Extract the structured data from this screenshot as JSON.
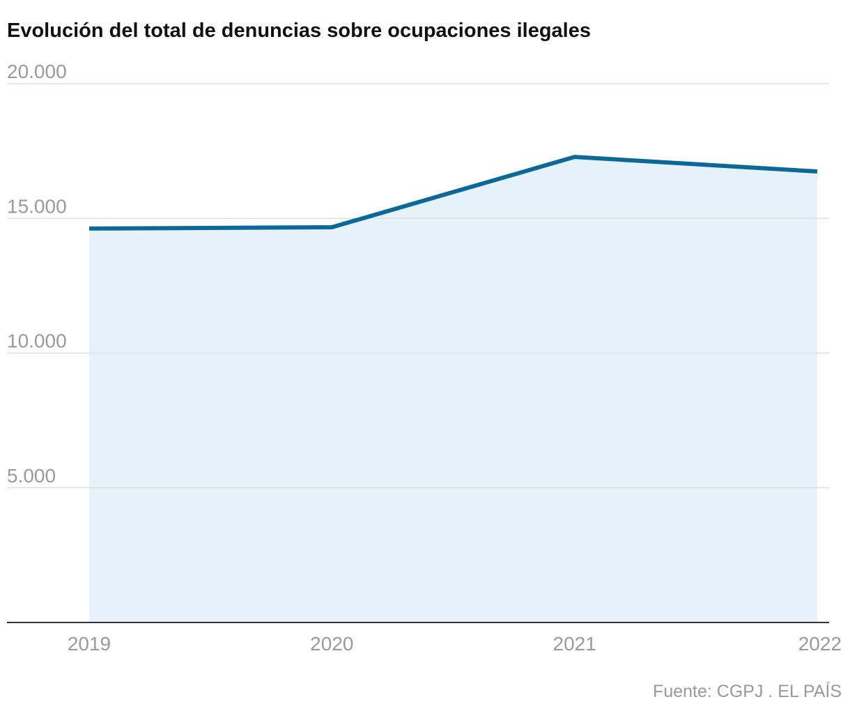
{
  "chart_data": {
    "type": "line",
    "title": "Evolución del total de denuncias sobre ocupaciones ilegales",
    "categories": [
      "2019",
      "2020",
      "2021",
      "2022"
    ],
    "values": [
      14620,
      14670,
      17280,
      16740
    ],
    "color": "#0b6898",
    "area_color": "#e6f2f9",
    "ylim": [
      0,
      20000
    ],
    "yticks": [
      {
        "value": 5000,
        "label": "5.000"
      },
      {
        "value": 10000,
        "label": "10.000"
      },
      {
        "value": 15000,
        "label": "15.000"
      },
      {
        "value": 20000,
        "label": "20.000"
      }
    ],
    "grid": true,
    "source": "Fuente: CGPJ . EL PAÍS"
  }
}
